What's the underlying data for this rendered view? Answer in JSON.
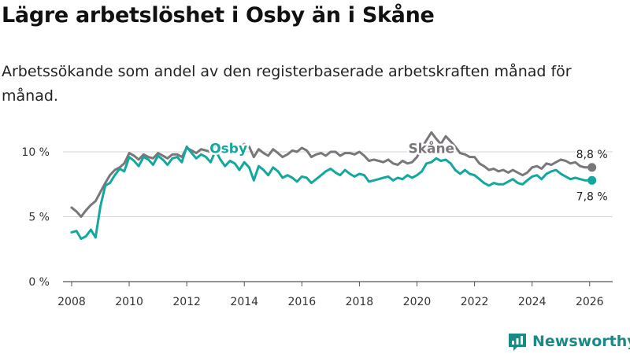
{
  "title": "Lägre arbetslöshet i Osby än i Skåne",
  "subtitle": "Arbetssökande som andel av den registerbaserade arbetskraften månad för månad.",
  "brand": {
    "name": "Newsworthy",
    "icon": "newsworthy-logo-icon"
  },
  "colors": {
    "osby": "#13a89e",
    "skane": "#7a767b",
    "grid": "#d4d4d4",
    "brand": "#1b8a86"
  },
  "chart_data": {
    "type": "line",
    "title": "Lägre arbetslöshet i Osby än i Skåne",
    "subtitle": "Arbetssökande som andel av den registerbaserade arbetskraften månad för månad.",
    "xlabel": "",
    "ylabel": "",
    "xlim": [
      2007.7,
      2026.8
    ],
    "ylim": [
      0,
      12
    ],
    "grid": true,
    "y_ticks": [
      {
        "value": 0,
        "label": "0 %"
      },
      {
        "value": 5,
        "label": "5 %"
      },
      {
        "value": 10,
        "label": "10 %"
      }
    ],
    "x_ticks": [
      {
        "value": 2008,
        "label": "2008"
      },
      {
        "value": 2010,
        "label": "2010"
      },
      {
        "value": 2012,
        "label": "2012"
      },
      {
        "value": 2014,
        "label": "2014"
      },
      {
        "value": 2016,
        "label": "2016"
      },
      {
        "value": 2018,
        "label": "2018"
      },
      {
        "value": 2020,
        "label": "2020"
      },
      {
        "value": 2022,
        "label": "2022"
      },
      {
        "value": 2024,
        "label": "2024"
      },
      {
        "value": 2026,
        "label": "2026"
      }
    ],
    "series": [
      {
        "name": "Skåne",
        "label": "Skåne",
        "end_label": "8,8 %",
        "label_at": [
          2020.5,
          9.9
        ],
        "x": [
          2008.0,
          2008.17,
          2008.33,
          2008.5,
          2008.67,
          2008.83,
          2009.0,
          2009.17,
          2009.33,
          2009.5,
          2009.67,
          2009.83,
          2010.0,
          2010.17,
          2010.33,
          2010.5,
          2010.67,
          2010.83,
          2011.0,
          2011.17,
          2011.33,
          2011.5,
          2011.67,
          2011.83,
          2012.0,
          2012.17,
          2012.33,
          2012.5,
          2012.67,
          2012.83,
          2013.0,
          2013.17,
          2013.33,
          2013.5,
          2013.67,
          2013.83,
          2014.0,
          2014.17,
          2014.33,
          2014.5,
          2014.67,
          2014.83,
          2015.0,
          2015.17,
          2015.33,
          2015.5,
          2015.67,
          2015.83,
          2016.0,
          2016.17,
          2016.33,
          2016.5,
          2016.67,
          2016.83,
          2017.0,
          2017.17,
          2017.33,
          2017.5,
          2017.67,
          2017.83,
          2018.0,
          2018.17,
          2018.33,
          2018.5,
          2018.67,
          2018.83,
          2019.0,
          2019.17,
          2019.33,
          2019.5,
          2019.67,
          2019.83,
          2020.0,
          2020.17,
          2020.33,
          2020.5,
          2020.67,
          2020.83,
          2021.0,
          2021.17,
          2021.33,
          2021.5,
          2021.67,
          2021.83,
          2022.0,
          2022.17,
          2022.33,
          2022.5,
          2022.67,
          2022.83,
          2023.0,
          2023.17,
          2023.33,
          2023.5,
          2023.67,
          2023.83,
          2024.0,
          2024.17,
          2024.33,
          2024.5,
          2024.67,
          2024.83,
          2025.0,
          2025.17,
          2025.33,
          2025.5,
          2025.67,
          2025.83,
          2026.0,
          2026.08
        ],
        "y": [
          5.7,
          5.4,
          5.0,
          5.5,
          5.9,
          6.2,
          6.9,
          7.6,
          8.2,
          8.6,
          8.8,
          9.1,
          9.9,
          9.7,
          9.4,
          9.8,
          9.6,
          9.5,
          9.9,
          9.7,
          9.5,
          9.8,
          9.8,
          9.6,
          10.3,
          10.1,
          9.9,
          10.2,
          10.1,
          10.0,
          10.5,
          10.3,
          10.1,
          10.4,
          10.2,
          10.3,
          10.6,
          10.4,
          9.6,
          10.2,
          9.9,
          9.7,
          10.2,
          9.9,
          9.6,
          9.8,
          10.1,
          10.0,
          10.3,
          10.1,
          9.6,
          9.8,
          9.9,
          9.7,
          10.0,
          10.0,
          9.7,
          9.9,
          9.9,
          9.8,
          10.0,
          9.7,
          9.3,
          9.4,
          9.3,
          9.2,
          9.4,
          9.1,
          9.0,
          9.3,
          9.1,
          9.2,
          9.6,
          10.3,
          10.9,
          11.5,
          11.0,
          10.6,
          11.2,
          10.8,
          10.4,
          9.9,
          9.8,
          9.6,
          9.6,
          9.1,
          8.9,
          8.6,
          8.7,
          8.5,
          8.6,
          8.4,
          8.6,
          8.4,
          8.2,
          8.4,
          8.8,
          8.9,
          8.7,
          9.1,
          9.0,
          9.2,
          9.4,
          9.3,
          9.1,
          9.2,
          8.9,
          8.8,
          8.8,
          8.8
        ]
      },
      {
        "name": "Osby",
        "label": "Osby",
        "end_label": "7,8 %",
        "label_at": [
          2013.45,
          9.9
        ],
        "x": [
          2008.0,
          2008.17,
          2008.33,
          2008.5,
          2008.67,
          2008.83,
          2009.0,
          2009.17,
          2009.33,
          2009.5,
          2009.67,
          2009.83,
          2010.0,
          2010.17,
          2010.33,
          2010.5,
          2010.67,
          2010.83,
          2011.0,
          2011.17,
          2011.33,
          2011.5,
          2011.67,
          2011.83,
          2012.0,
          2012.17,
          2012.33,
          2012.5,
          2012.67,
          2012.83,
          2013.0,
          2013.17,
          2013.33,
          2013.5,
          2013.67,
          2013.83,
          2014.0,
          2014.17,
          2014.33,
          2014.5,
          2014.67,
          2014.83,
          2015.0,
          2015.17,
          2015.33,
          2015.5,
          2015.67,
          2015.83,
          2016.0,
          2016.17,
          2016.33,
          2016.5,
          2016.67,
          2016.83,
          2017.0,
          2017.17,
          2017.33,
          2017.5,
          2017.67,
          2017.83,
          2018.0,
          2018.17,
          2018.33,
          2018.5,
          2018.67,
          2018.83,
          2019.0,
          2019.17,
          2019.33,
          2019.5,
          2019.67,
          2019.83,
          2020.0,
          2020.17,
          2020.33,
          2020.5,
          2020.67,
          2020.83,
          2021.0,
          2021.17,
          2021.33,
          2021.5,
          2021.67,
          2021.83,
          2022.0,
          2022.17,
          2022.33,
          2022.5,
          2022.67,
          2022.83,
          2023.0,
          2023.17,
          2023.33,
          2023.5,
          2023.67,
          2023.83,
          2024.0,
          2024.17,
          2024.33,
          2024.5,
          2024.67,
          2024.83,
          2025.0,
          2025.17,
          2025.33,
          2025.5,
          2025.67,
          2025.83,
          2026.0,
          2026.08
        ],
        "y": [
          3.8,
          3.9,
          3.3,
          3.5,
          4.0,
          3.4,
          5.8,
          7.4,
          7.6,
          8.2,
          8.7,
          8.5,
          9.6,
          9.3,
          8.9,
          9.6,
          9.4,
          9.0,
          9.7,
          9.4,
          9.0,
          9.5,
          9.6,
          9.2,
          10.4,
          9.9,
          9.5,
          9.8,
          9.6,
          9.2,
          10.1,
          9.4,
          8.9,
          9.3,
          9.1,
          8.6,
          9.2,
          8.8,
          7.8,
          8.9,
          8.6,
          8.2,
          8.8,
          8.5,
          8.0,
          8.2,
          8.0,
          7.7,
          8.1,
          8.0,
          7.6,
          7.9,
          8.2,
          8.5,
          8.7,
          8.4,
          8.2,
          8.6,
          8.3,
          8.1,
          8.3,
          8.2,
          7.7,
          7.8,
          7.9,
          8.0,
          8.1,
          7.8,
          8.0,
          7.9,
          8.2,
          8.0,
          8.2,
          8.5,
          9.1,
          9.2,
          9.5,
          9.3,
          9.4,
          9.1,
          8.6,
          8.3,
          8.6,
          8.3,
          8.2,
          7.9,
          7.6,
          7.4,
          7.6,
          7.5,
          7.5,
          7.7,
          7.9,
          7.6,
          7.5,
          7.8,
          8.1,
          8.2,
          7.9,
          8.3,
          8.5,
          8.6,
          8.3,
          8.1,
          7.9,
          8.0,
          7.9,
          7.8,
          7.8,
          7.8
        ]
      }
    ]
  }
}
